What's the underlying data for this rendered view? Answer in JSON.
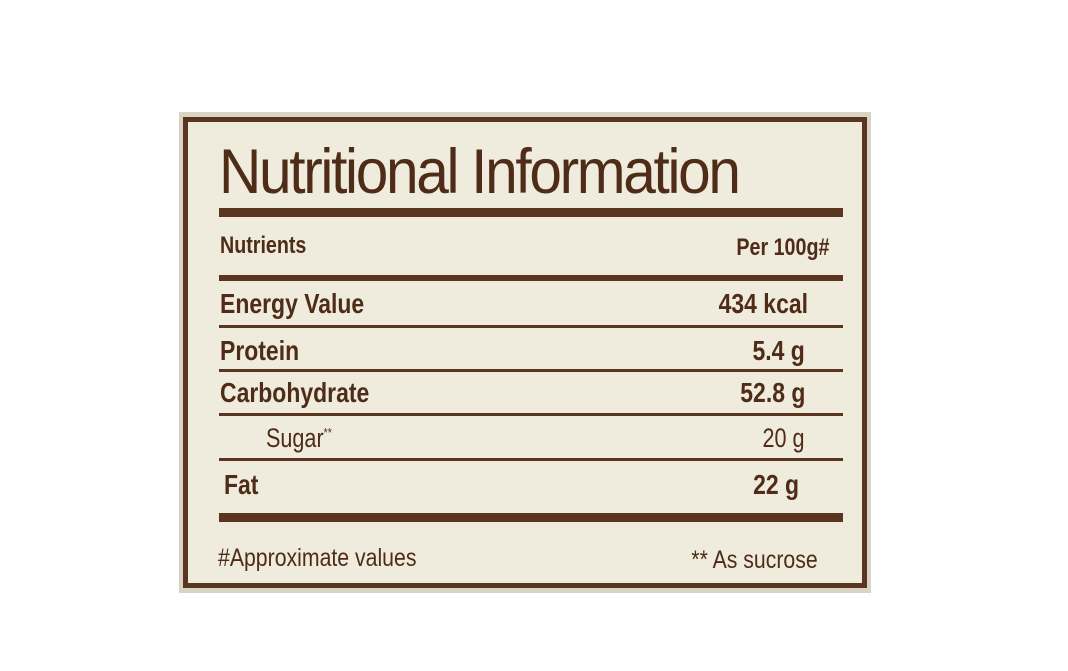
{
  "title": "Nutritional Information",
  "header": {
    "nutrients": "Nutrients",
    "per": "Per 100g#"
  },
  "rows": [
    {
      "name": "Energy Value",
      "value": "434 kcal"
    },
    {
      "name": "Protein",
      "value": "5.4 g"
    },
    {
      "name": "Carbohydrate",
      "value": "52.8 g"
    },
    {
      "name": "Sugar",
      "name_mark": "**",
      "value": "20 g"
    },
    {
      "name": "Fat",
      "value": "22 g"
    }
  ],
  "footnotes": {
    "left": "#Approximate values",
    "right": "** As sucrose"
  },
  "colors": {
    "ink": "#4f2c18",
    "rule": "#5a3520",
    "paper": "#efebdd"
  }
}
